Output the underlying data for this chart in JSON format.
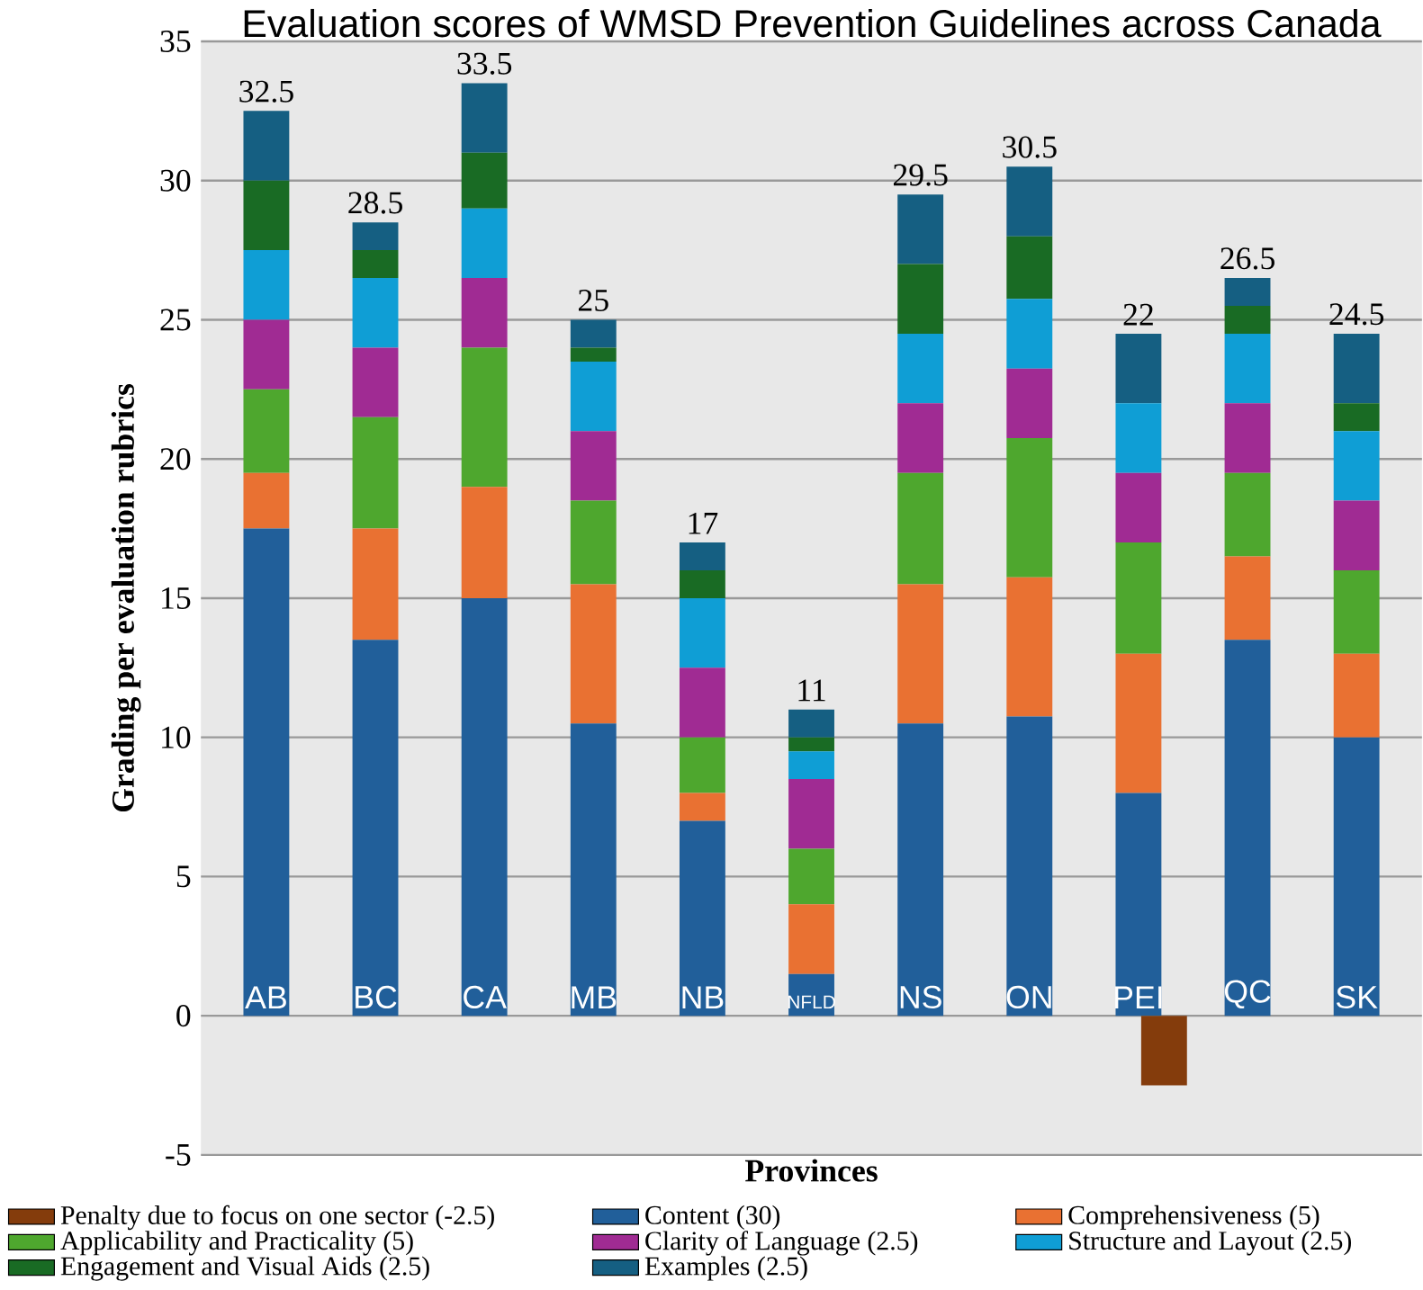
{
  "chart_data": {
    "type": "bar",
    "stacked": true,
    "title": "Evaluation scores of WMSD Prevention Guidelines across Canada",
    "xlabel": "Provinces",
    "ylabel": "Grading per evaluation rubrics",
    "categories": [
      "AB",
      "BC",
      "CA",
      "MB",
      "NB",
      "NFLD",
      "NS",
      "ON",
      "PEI",
      "QC",
      "SK"
    ],
    "ylim": [
      -5,
      35
    ],
    "yticks": [
      -5,
      0,
      5,
      10,
      15,
      20,
      25,
      30,
      35
    ],
    "grid": "y",
    "legend": "bottom",
    "totals": [
      "32.5",
      "28.5",
      "33.5",
      "25",
      "17",
      "11",
      "29.5",
      "30.5",
      "22",
      "26.5",
      "24.5"
    ],
    "series": [
      {
        "name": "Penalty due to focus on one sector (-2.5)",
        "color": "#843c0c",
        "values": [
          null,
          null,
          null,
          null,
          null,
          null,
          null,
          null,
          -2.5,
          null,
          null
        ]
      },
      {
        "name": "Content (30)",
        "color": "#215f9a",
        "values": [
          17.5,
          13.5,
          15,
          10.5,
          7,
          1.5,
          10.5,
          10.75,
          8,
          13.5,
          10
        ]
      },
      {
        "name": "Comprehensiveness (5)",
        "color": "#e97132",
        "values": [
          2,
          4,
          4,
          5,
          1,
          2.5,
          5,
          5,
          5,
          3,
          3
        ]
      },
      {
        "name": "Applicability and Practicality (5)",
        "color": "#4ea72e",
        "values": [
          3,
          4,
          5,
          3,
          2,
          2,
          4,
          5,
          4,
          3,
          3
        ]
      },
      {
        "name": "Clarity of Language (2.5)",
        "color": "#a02b93",
        "values": [
          2.5,
          2.5,
          2.5,
          2.5,
          2.5,
          2.5,
          2.5,
          2.5,
          2.5,
          2.5,
          2.5
        ]
      },
      {
        "name": "Structure and Layout (2.5)",
        "color": "#0f9ed5",
        "values": [
          2.5,
          2.5,
          2.5,
          2.5,
          2.5,
          1,
          2.5,
          2.5,
          2.5,
          2.5,
          2.5
        ]
      },
      {
        "name": "Engagement and Visual Aids (2.5)",
        "color": "#196b24",
        "values": [
          2.5,
          1,
          2,
          0.5,
          1,
          0.5,
          2.5,
          2.25,
          0,
          1,
          1
        ]
      },
      {
        "name": "Examples (2.5)",
        "color": "#155f82",
        "values": [
          2.5,
          1,
          2.5,
          1,
          1,
          1,
          2.5,
          2.5,
          2.5,
          1,
          2.5
        ]
      }
    ]
  }
}
